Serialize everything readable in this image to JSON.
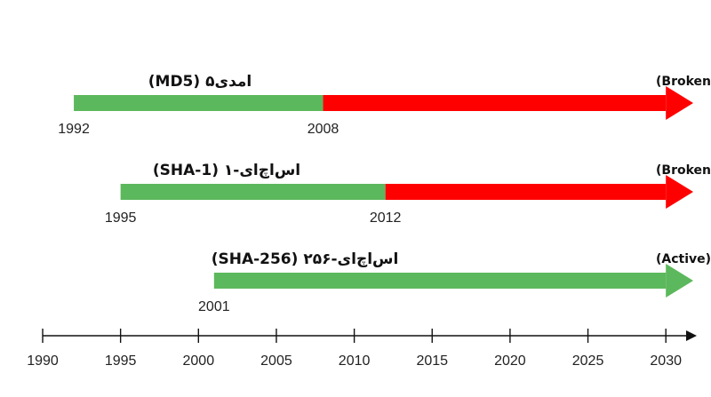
{
  "axis": {
    "ticks": [
      "1990",
      "1995",
      "2000",
      "2005",
      "2010",
      "2015",
      "2020",
      "2025",
      "2030"
    ]
  },
  "colors": {
    "active": "#5cb85c",
    "broken": "#ff0000",
    "axis": "#111111"
  },
  "timelines": [
    {
      "name": "امدی۵ (MD5)",
      "status_label": "منسوخ (Broken)",
      "start_year": "1992",
      "break_year": "2008",
      "start": 1992,
      "break": 2008,
      "end": 2030
    },
    {
      "name": "اس‌اچ‌ای-۱ (SHA-1)",
      "status_label": "منسوخ (Broken)",
      "start_year": "1995",
      "break_year": "2012",
      "start": 1995,
      "break": 2012,
      "end": 2030
    },
    {
      "name": "اس‌اچ‌ای-۲۵۶ (SHA-256)",
      "status_label": "فعال (Active)",
      "start_year": "2001",
      "break_year": "",
      "start": 2001,
      "break": null,
      "end": 2030
    }
  ]
}
